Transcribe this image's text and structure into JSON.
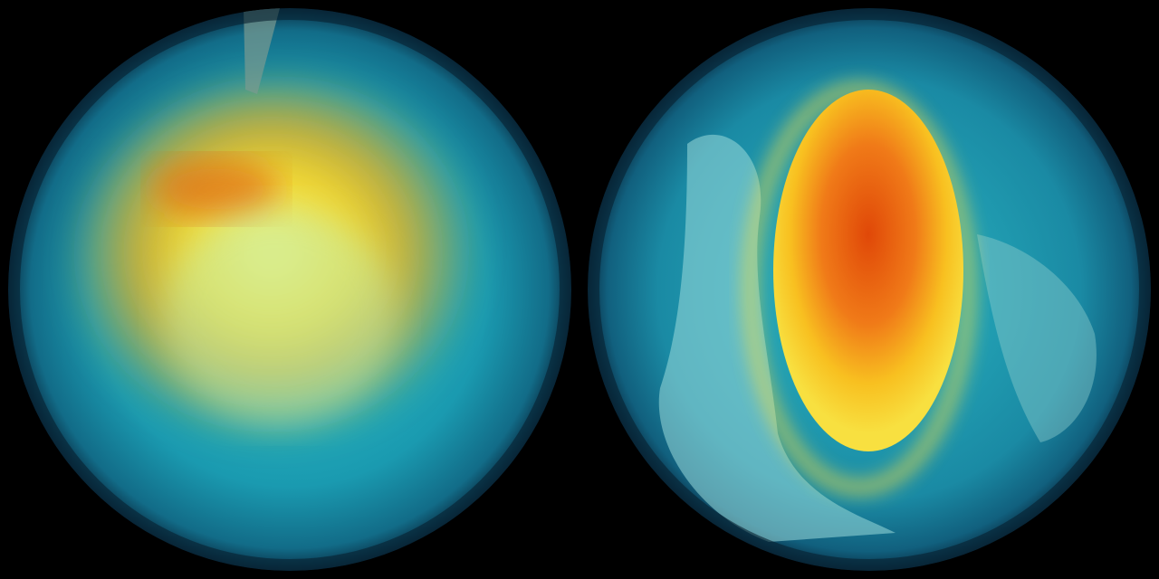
{
  "globes": [
    {
      "view": "southern-hemisphere-polar",
      "colors": {
        "ocean": "#0f5f7a",
        "rim": "#0a2f45",
        "ring": "#20b0c0",
        "warm": "#f0c020",
        "hot": "#e05010",
        "core": "#f4f060",
        "ice": "#a8e8e0"
      }
    },
    {
      "view": "northern-hemisphere-polar",
      "colors": {
        "ocean": "#0f5f7a",
        "rim": "#0a2f45",
        "ring": "#30c0c8",
        "warm": "#f8d020",
        "hot": "#e04808",
        "land": "#9adada"
      }
    }
  ]
}
